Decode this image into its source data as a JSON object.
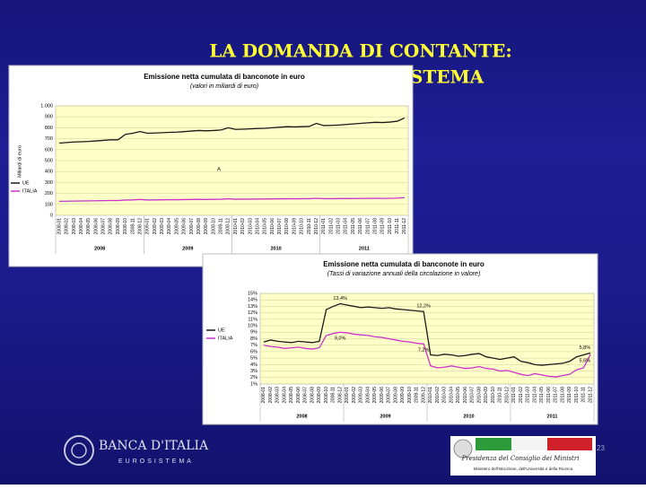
{
  "slide": {
    "title_line1": "LA DOMANDA DI CONTANTE:",
    "title_line2": "STEMA",
    "page_number": "23",
    "left_logo": {
      "name": "BANCA D'ITALIA",
      "subtitle": "EUROSISTEMA"
    },
    "right_logo": {
      "line1": "Presidenza del Consiglio dei Ministri",
      "line2": "Ministero dell'Istruzione, dell'Università e della Ricerca"
    }
  },
  "chart_data": [
    {
      "type": "line",
      "title": "Emissione netta cumulata di banconote in euro",
      "subtitle": "(valori in miliardi di euro)",
      "y_label": "Miliardi di euro",
      "annotation": "A",
      "categories": [
        "2008-01",
        "2008-02",
        "2008-03",
        "2008-04",
        "2008-05",
        "2008-06",
        "2008-07",
        "2008-08",
        "2008-09",
        "2008-10",
        "2008-11",
        "2008-12",
        "2009-01",
        "2009-02",
        "2009-03",
        "2009-04",
        "2009-05",
        "2009-06",
        "2009-07",
        "2009-08",
        "2009-09",
        "2009-10",
        "2009-11",
        "2009-12",
        "2010-01",
        "2010-02",
        "2010-03",
        "2010-04",
        "2010-05",
        "2010-06",
        "2010-07",
        "2010-08",
        "2010-09",
        "2010-10",
        "2010-11",
        "2010-12",
        "2011-01",
        "2011-02",
        "2011-03",
        "2011-04",
        "2011-05",
        "2011-06",
        "2011-07",
        "2011-08",
        "2011-09",
        "2011-10",
        "2011-11",
        "2011-12"
      ],
      "x_groups": [
        "2008",
        "2009",
        "2010",
        "2011"
      ],
      "series": [
        {
          "name": "UE",
          "color": "#1a1a1a",
          "values": [
            660,
            665,
            670,
            672,
            675,
            680,
            685,
            690,
            690,
            740,
            750,
            765,
            750,
            752,
            755,
            758,
            760,
            765,
            770,
            775,
            772,
            775,
            780,
            800,
            785,
            787,
            790,
            793,
            795,
            800,
            805,
            810,
            808,
            810,
            812,
            840,
            820,
            822,
            825,
            830,
            835,
            840,
            845,
            850,
            848,
            852,
            860,
            890
          ]
        },
        {
          "name": "ITALIA",
          "color": "#cc33cc",
          "values": [
            128,
            129,
            130,
            131,
            132,
            133,
            134,
            135,
            135,
            140,
            141,
            145,
            140,
            141,
            142,
            143,
            143,
            144,
            145,
            146,
            145,
            146,
            147,
            151,
            147,
            148,
            148,
            149,
            149,
            150,
            151,
            152,
            151,
            152,
            152,
            156,
            152,
            152,
            153,
            153,
            154,
            154,
            155,
            156,
            155,
            156,
            157,
            162
          ]
        }
      ],
      "ylim": [
        0,
        1000
      ],
      "yticks": [
        0,
        100,
        200,
        300,
        400,
        500,
        600,
        700,
        800,
        900,
        {
          "value": 1000,
          "label": "1.000"
        }
      ],
      "grid": true
    },
    {
      "type": "line",
      "title": "Emissione netta cumulata di banconote in euro",
      "subtitle": "(Tassi di variazione annuali della circolazione in valore)",
      "categories": [
        "2008-01",
        "2008-02",
        "2008-03",
        "2008-04",
        "2008-05",
        "2008-06",
        "2008-07",
        "2008-08",
        "2008-09",
        "2008-10",
        "2008-11",
        "2008-12",
        "2009-01",
        "2009-02",
        "2009-03",
        "2009-04",
        "2009-05",
        "2009-06",
        "2009-07",
        "2009-08",
        "2009-09",
        "2009-10",
        "2009-11",
        "2009-12",
        "2010-01",
        "2010-02",
        "2010-03",
        "2010-04",
        "2010-05",
        "2010-06",
        "2010-07",
        "2010-08",
        "2010-09",
        "2010-10",
        "2010-11",
        "2010-12",
        "2011-01",
        "2011-02",
        "2011-03",
        "2011-04",
        "2011-05",
        "2011-06",
        "2011-07",
        "2011-08",
        "2011-09",
        "2011-10",
        "2011-11",
        "2011-12"
      ],
      "x_groups": [
        "2008",
        "2009",
        "2010",
        "2011"
      ],
      "series": [
        {
          "name": "UE",
          "color": "#1a1a1a",
          "values": [
            7.5,
            7.8,
            7.6,
            7.5,
            7.4,
            7.6,
            7.5,
            7.4,
            7.6,
            12.5,
            13.0,
            13.4,
            13.2,
            13.0,
            12.8,
            12.9,
            12.8,
            12.7,
            12.8,
            12.6,
            12.5,
            12.4,
            12.3,
            12.2,
            5.5,
            5.4,
            5.6,
            5.5,
            5.3,
            5.4,
            5.6,
            5.7,
            5.2,
            5.0,
            4.8,
            5.0,
            5.2,
            4.5,
            4.3,
            4.0,
            3.9,
            4.0,
            4.1,
            4.2,
            4.5,
            5.2,
            5.5,
            5.8
          ],
          "value_labels": [
            null,
            null,
            null,
            null,
            null,
            null,
            null,
            null,
            null,
            null,
            null,
            "13,4%",
            null,
            null,
            null,
            null,
            null,
            null,
            null,
            null,
            null,
            null,
            null,
            "12,2%",
            null,
            null,
            null,
            null,
            null,
            null,
            null,
            null,
            null,
            null,
            null,
            null,
            null,
            null,
            null,
            null,
            null,
            null,
            null,
            null,
            null,
            null,
            null,
            "5,8%"
          ]
        },
        {
          "name": "ITALIA",
          "color": "#cc33cc",
          "values": [
            7.0,
            6.8,
            6.7,
            6.5,
            6.6,
            6.7,
            6.5,
            6.4,
            6.6,
            8.5,
            8.8,
            9.0,
            8.9,
            8.7,
            8.6,
            8.5,
            8.3,
            8.2,
            8.0,
            7.8,
            7.6,
            7.5,
            7.3,
            7.2,
            3.8,
            3.5,
            3.6,
            3.8,
            3.6,
            3.4,
            3.5,
            3.7,
            3.4,
            3.3,
            3.0,
            3.1,
            2.8,
            2.5,
            2.3,
            2.6,
            2.4,
            2.2,
            2.1,
            2.3,
            2.5,
            3.2,
            3.5,
            5.6
          ],
          "value_labels": [
            null,
            null,
            null,
            null,
            null,
            null,
            null,
            null,
            null,
            null,
            null,
            "9,0%",
            null,
            null,
            null,
            null,
            null,
            null,
            null,
            null,
            null,
            null,
            null,
            "7,2%",
            null,
            null,
            null,
            null,
            null,
            null,
            null,
            null,
            null,
            null,
            null,
            null,
            null,
            null,
            null,
            null,
            null,
            null,
            null,
            null,
            null,
            null,
            null,
            "5,6%"
          ]
        }
      ],
      "ylim": [
        1,
        15
      ],
      "yticks": [
        {
          "value": 1,
          "label": "1%"
        },
        {
          "value": 2,
          "label": "2%"
        },
        {
          "value": 3,
          "label": "3%"
        },
        {
          "value": 4,
          "label": "4%"
        },
        {
          "value": 5,
          "label": "5%"
        },
        {
          "value": 6,
          "label": "6%"
        },
        {
          "value": 7,
          "label": "7%"
        },
        {
          "value": 8,
          "label": "8%"
        },
        {
          "value": 9,
          "label": "9%"
        },
        {
          "value": 10,
          "label": "10%"
        },
        {
          "value": 11,
          "label": "11%"
        },
        {
          "value": 12,
          "label": "12%"
        },
        {
          "value": 13,
          "label": "13%"
        },
        {
          "value": 14,
          "label": "14%"
        },
        {
          "value": 15,
          "label": "15%"
        }
      ],
      "grid": true
    }
  ]
}
